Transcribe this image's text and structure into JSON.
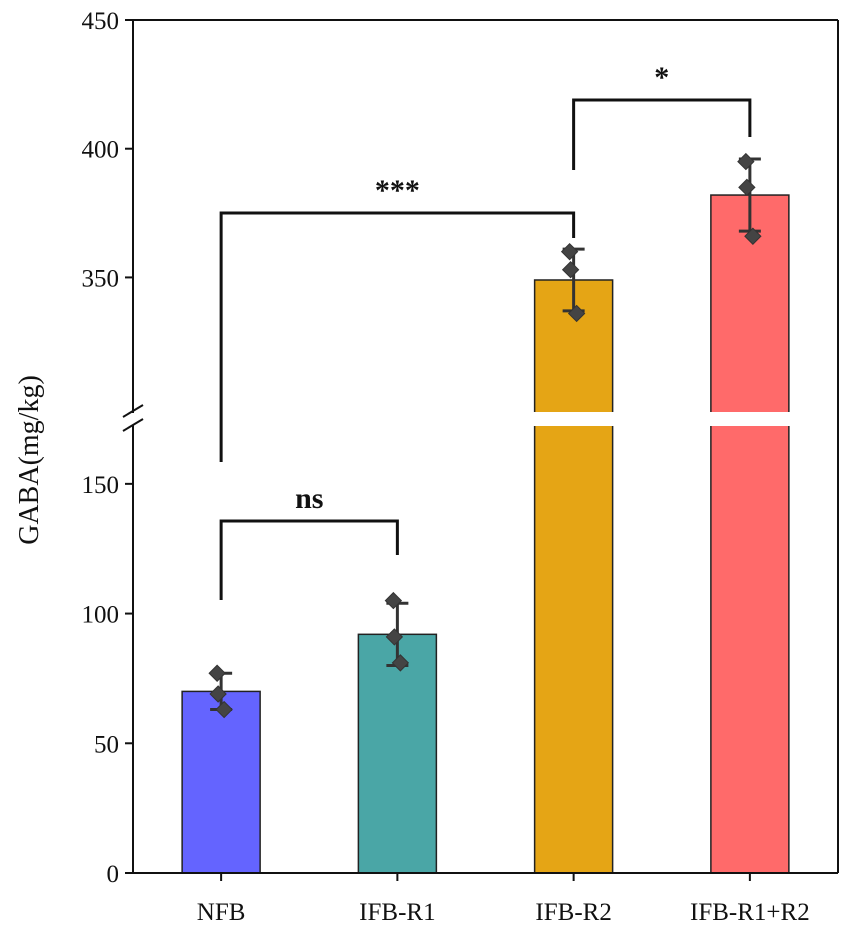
{
  "chart_data": {
    "type": "bar",
    "title": "",
    "xlabel": "",
    "ylabel": "GABA(mg/kg)",
    "categories": [
      "NFB",
      "IFB-R1",
      "IFB-R2",
      "IFB-R1+R2"
    ],
    "values": [
      70,
      92,
      349,
      382
    ],
    "errors": [
      7,
      12,
      12,
      14
    ],
    "points": [
      [
        77,
        63,
        69
      ],
      [
        105,
        81,
        91
      ],
      [
        360,
        336,
        353
      ],
      [
        395,
        366,
        385
      ]
    ],
    "colors": [
      "#6464FF",
      "#4AA6A6",
      "#E5A515",
      "#FF6A6A"
    ],
    "ylim_lower": [
      0,
      175
    ],
    "ylim_upper": [
      295,
      450
    ],
    "axis_break": "between 175 and 295",
    "yticks_lower": [
      "0",
      "50",
      "100",
      "150"
    ],
    "yticks_upper": [
      "350",
      "400",
      "450"
    ],
    "significance": [
      {
        "from": "NFB",
        "to": "IFB-R1",
        "label": "ns"
      },
      {
        "from": "NFB",
        "to": "IFB-R2",
        "label": "***"
      },
      {
        "from": "IFB-R2",
        "to": "IFB-R1+R2",
        "label": "*"
      }
    ]
  }
}
